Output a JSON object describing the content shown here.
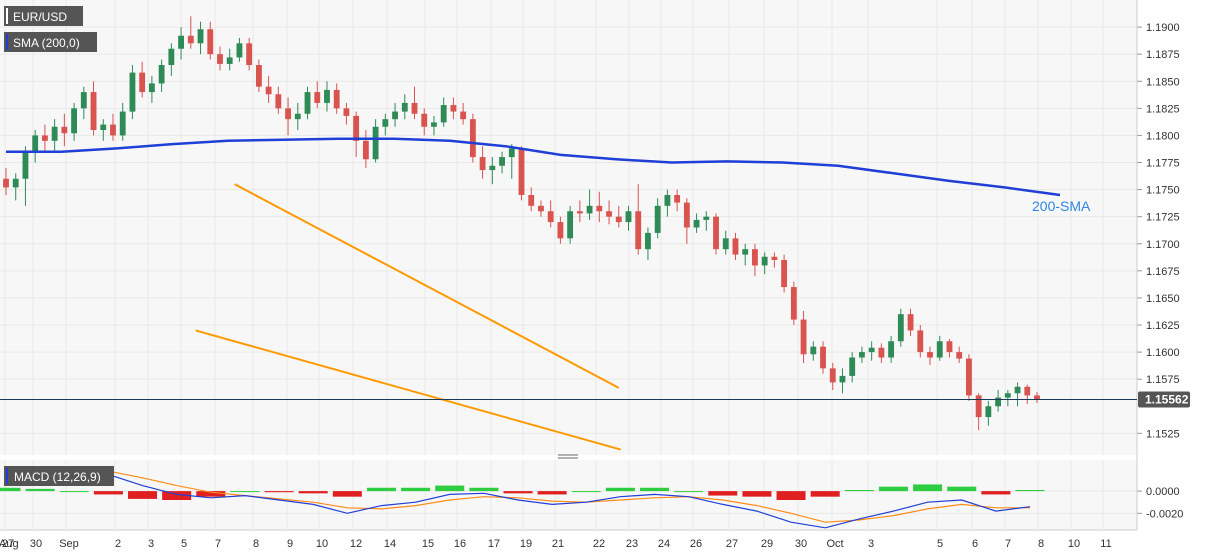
{
  "chart_data": [
    {
      "type": "candlestick",
      "symbol": "EUR/USD",
      "overlay_label": "SMA (200,0)",
      "sma_annotation": "200-SMA",
      "price_tag": "1.15562",
      "last_price": 1.15562,
      "ylim": [
        1.1505,
        1.1925
      ],
      "y_ticks": [
        "1.1900",
        "1.1875",
        "1.1850",
        "1.1825",
        "1.1800",
        "1.1775",
        "1.1750",
        "1.1725",
        "1.1700",
        "1.1675",
        "1.1650",
        "1.1625",
        "1.1600",
        "1.1575",
        "1.1525"
      ],
      "x_labels": [
        "Aug",
        "27",
        "30",
        "Sep",
        "2",
        "3",
        "5",
        "7",
        "8",
        "9",
        "10",
        "12",
        "14",
        "15",
        "16",
        "17",
        "19",
        "21",
        "22",
        "23",
        "24",
        "26",
        "27",
        "29",
        "30",
        "Oct",
        "3",
        "5",
        "6",
        "7",
        "8",
        "10",
        "11"
      ],
      "candles": [
        [
          1.176,
          1.177,
          1.1745,
          1.1752
        ],
        [
          1.1752,
          1.1765,
          1.174,
          1.176
        ],
        [
          1.176,
          1.179,
          1.1735,
          1.1785
        ],
        [
          1.1785,
          1.1805,
          1.1775,
          1.18
        ],
        [
          1.18,
          1.181,
          1.1785,
          1.1795
        ],
        [
          1.1795,
          1.1815,
          1.1785,
          1.1808
        ],
        [
          1.1808,
          1.182,
          1.179,
          1.1802
        ],
        [
          1.1802,
          1.183,
          1.1795,
          1.1825
        ],
        [
          1.1825,
          1.1845,
          1.1815,
          1.184
        ],
        [
          1.184,
          1.185,
          1.18,
          1.1805
        ],
        [
          1.1805,
          1.1815,
          1.1795,
          1.181
        ],
        [
          1.181,
          1.182,
          1.1795,
          1.18
        ],
        [
          1.18,
          1.183,
          1.1795,
          1.1822
        ],
        [
          1.1822,
          1.1865,
          1.1815,
          1.1858
        ],
        [
          1.1858,
          1.1868,
          1.1835,
          1.184
        ],
        [
          1.184,
          1.1855,
          1.183,
          1.1848
        ],
        [
          1.1848,
          1.187,
          1.184,
          1.1865
        ],
        [
          1.1865,
          1.1885,
          1.1855,
          1.188
        ],
        [
          1.188,
          1.19,
          1.187,
          1.1892
        ],
        [
          1.1892,
          1.191,
          1.188,
          1.1885
        ],
        [
          1.1885,
          1.1905,
          1.1875,
          1.1898
        ],
        [
          1.1898,
          1.1905,
          1.187,
          1.1875
        ],
        [
          1.1875,
          1.1882,
          1.186,
          1.1866
        ],
        [
          1.1866,
          1.188,
          1.186,
          1.1872
        ],
        [
          1.1872,
          1.189,
          1.1868,
          1.1885
        ],
        [
          1.1885,
          1.189,
          1.186,
          1.1865
        ],
        [
          1.1865,
          1.187,
          1.184,
          1.1845
        ],
        [
          1.1845,
          1.1855,
          1.183,
          1.1838
        ],
        [
          1.1838,
          1.1845,
          1.182,
          1.1825
        ],
        [
          1.1825,
          1.1835,
          1.18,
          1.1815
        ],
        [
          1.1815,
          1.183,
          1.1805,
          1.182
        ],
        [
          1.182,
          1.1845,
          1.1815,
          1.184
        ],
        [
          1.184,
          1.185,
          1.1825,
          1.183
        ],
        [
          1.183,
          1.185,
          1.1822,
          1.1842
        ],
        [
          1.1842,
          1.1848,
          1.182,
          1.1825
        ],
        [
          1.1825,
          1.183,
          1.181,
          1.1818
        ],
        [
          1.1818,
          1.1822,
          1.178,
          1.1795
        ],
        [
          1.1795,
          1.1805,
          1.177,
          1.1778
        ],
        [
          1.1778,
          1.1815,
          1.1775,
          1.1808
        ],
        [
          1.1808,
          1.182,
          1.18,
          1.1815
        ],
        [
          1.1815,
          1.183,
          1.1808,
          1.1822
        ],
        [
          1.1822,
          1.1838,
          1.1815,
          1.183
        ],
        [
          1.183,
          1.1845,
          1.1815,
          1.182
        ],
        [
          1.182,
          1.1825,
          1.18,
          1.1808
        ],
        [
          1.1808,
          1.1818,
          1.18,
          1.1812
        ],
        [
          1.1812,
          1.1835,
          1.1808,
          1.1828
        ],
        [
          1.1828,
          1.1835,
          1.1815,
          1.1822
        ],
        [
          1.1822,
          1.183,
          1.181,
          1.1815
        ],
        [
          1.1815,
          1.182,
          1.1775,
          1.178
        ],
        [
          1.178,
          1.179,
          1.176,
          1.1768
        ],
        [
          1.1768,
          1.178,
          1.1755,
          1.1772
        ],
        [
          1.1772,
          1.1785,
          1.1765,
          1.178
        ],
        [
          1.178,
          1.1792,
          1.176,
          1.1788
        ],
        [
          1.1788,
          1.179,
          1.174,
          1.1745
        ],
        [
          1.1745,
          1.1752,
          1.173,
          1.1735
        ],
        [
          1.1735,
          1.174,
          1.1725,
          1.173
        ],
        [
          1.173,
          1.174,
          1.1715,
          1.172
        ],
        [
          1.172,
          1.1725,
          1.17,
          1.1705
        ],
        [
          1.1705,
          1.1735,
          1.17,
          1.173
        ],
        [
          1.173,
          1.174,
          1.172,
          1.1728
        ],
        [
          1.1728,
          1.175,
          1.1722,
          1.1735
        ],
        [
          1.1735,
          1.1748,
          1.172,
          1.173
        ],
        [
          1.173,
          1.174,
          1.1718,
          1.1725
        ],
        [
          1.1725,
          1.1735,
          1.1715,
          1.172
        ],
        [
          1.172,
          1.1735,
          1.1712,
          1.173
        ],
        [
          1.173,
          1.1755,
          1.169,
          1.1695
        ],
        [
          1.1695,
          1.1715,
          1.1685,
          1.171
        ],
        [
          1.171,
          1.1742,
          1.1705,
          1.1735
        ],
        [
          1.1735,
          1.175,
          1.1725,
          1.1745
        ],
        [
          1.1745,
          1.175,
          1.173,
          1.1738
        ],
        [
          1.1738,
          1.1742,
          1.17,
          1.1715
        ],
        [
          1.1715,
          1.1728,
          1.171,
          1.1722
        ],
        [
          1.1722,
          1.173,
          1.1712,
          1.1725
        ],
        [
          1.1725,
          1.1728,
          1.169,
          1.1695
        ],
        [
          1.1695,
          1.1712,
          1.169,
          1.1705
        ],
        [
          1.1705,
          1.171,
          1.1685,
          1.169
        ],
        [
          1.169,
          1.17,
          1.168,
          1.1695
        ],
        [
          1.1695,
          1.17,
          1.167,
          1.168
        ],
        [
          1.168,
          1.1692,
          1.1672,
          1.1688
        ],
        [
          1.1688,
          1.1692,
          1.1678,
          1.1685
        ],
        [
          1.1685,
          1.169,
          1.1655,
          1.166
        ],
        [
          1.166,
          1.1665,
          1.1625,
          1.163
        ],
        [
          1.163,
          1.1638,
          1.159,
          1.1598
        ],
        [
          1.1598,
          1.161,
          1.1592,
          1.1605
        ],
        [
          1.1605,
          1.161,
          1.158,
          1.1585
        ],
        [
          1.1585,
          1.159,
          1.1565,
          1.1572
        ],
        [
          1.1572,
          1.1585,
          1.1562,
          1.1578
        ],
        [
          1.1578,
          1.16,
          1.1572,
          1.1595
        ],
        [
          1.1595,
          1.1605,
          1.159,
          1.16
        ],
        [
          1.16,
          1.161,
          1.1592,
          1.1604
        ],
        [
          1.1604,
          1.1608,
          1.159,
          1.1595
        ],
        [
          1.1595,
          1.1615,
          1.159,
          1.161
        ],
        [
          1.161,
          1.164,
          1.1605,
          1.1635
        ],
        [
          1.1635,
          1.164,
          1.1615,
          1.162
        ],
        [
          1.162,
          1.1625,
          1.1595,
          1.16
        ],
        [
          1.16,
          1.1605,
          1.1588,
          1.1595
        ],
        [
          1.1595,
          1.1615,
          1.1592,
          1.161
        ],
        [
          1.161,
          1.1612,
          1.1595,
          1.16
        ],
        [
          1.16,
          1.1605,
          1.159,
          1.1594
        ],
        [
          1.1594,
          1.1598,
          1.1555,
          1.156
        ],
        [
          1.156,
          1.1562,
          1.1528,
          1.154
        ],
        [
          1.154,
          1.1555,
          1.1532,
          1.155
        ],
        [
          1.155,
          1.1565,
          1.1545,
          1.1558
        ],
        [
          1.1558,
          1.1565,
          1.155,
          1.1562
        ],
        [
          1.1562,
          1.1572,
          1.155,
          1.1568
        ],
        [
          1.1568,
          1.157,
          1.1552,
          1.156
        ],
        [
          1.156,
          1.1563,
          1.1553,
          1.1556
        ]
      ],
      "sma200": [
        1.1785,
        1.1785,
        1.1788,
        1.1792,
        1.1795,
        1.1796,
        1.1797,
        1.1797,
        1.1795,
        1.179,
        1.1782,
        1.1778,
        1.1775,
        1.1776,
        1.1775,
        1.1772,
        1.1765,
        1.1758,
        1.1752,
        1.1745
      ],
      "trend_lines": [
        {
          "name": "falling-wedge-upper",
          "points": [
            [
              1.1755,
              23.5
            ],
            [
              1.1567,
              63.0
            ]
          ]
        },
        {
          "name": "falling-wedge-lower",
          "points": [
            [
              1.162,
              19.5
            ],
            [
              1.151,
              63.2
            ]
          ]
        }
      ]
    },
    {
      "type": "macd",
      "label": "MACD (12,26,9)",
      "ylim": [
        -0.0035,
        0.0028
      ],
      "y_ticks": [
        "0.0000",
        "-0.0020"
      ],
      "macd": [
        0.0018,
        0.002,
        0.002,
        0.0015,
        0.0005,
        -0.0003,
        -0.0006,
        -0.0004,
        -0.0008,
        -0.0012,
        -0.002,
        -0.0013,
        -0.001,
        -0.0003,
        -0.0002,
        -0.0008,
        -0.0012,
        -0.001,
        -0.0005,
        -0.0003,
        -0.0005,
        -0.0012,
        -0.0018,
        -0.0028,
        -0.0033,
        -0.0025,
        -0.0018,
        -0.001,
        -0.0008,
        -0.0018,
        -0.0014
      ],
      "signal": [
        0.0015,
        0.0018,
        0.002,
        0.0018,
        0.0012,
        0.0005,
        -0.0001,
        -0.0004,
        -0.0007,
        -0.001,
        -0.0015,
        -0.0016,
        -0.0013,
        -0.0008,
        -0.0005,
        -0.0006,
        -0.0009,
        -0.001,
        -0.0008,
        -0.0006,
        -0.0005,
        -0.0008,
        -0.0013,
        -0.002,
        -0.0028,
        -0.0026,
        -0.0022,
        -0.0016,
        -0.0012,
        -0.0015,
        -0.0015
      ],
      "histogram": [
        0.0003,
        0.0002,
        0.0,
        -0.0003,
        -0.0007,
        -0.0008,
        -0.0005,
        0.0,
        -0.0001,
        -0.0002,
        -0.0005,
        0.0003,
        0.0003,
        0.0005,
        0.0003,
        -0.0002,
        -0.0003,
        0.0,
        0.0003,
        0.0003,
        0.0,
        -0.0004,
        -0.0005,
        -0.0008,
        -0.0005,
        0.0001,
        0.0004,
        0.0006,
        0.0004,
        -0.0003,
        0.0001
      ]
    }
  ],
  "colors": {
    "up": "#2e8b57",
    "down": "#d9534f",
    "sma": "#1f3fd6",
    "trend": "#ff9900",
    "macd": "#1f3fd6",
    "signal": "#ff8c1a",
    "hist_up": "#2ecc40",
    "hist_down": "#e02020",
    "tag_bg": "#555555",
    "anno": "#2e86de",
    "price_line": "#1a3a5a"
  }
}
